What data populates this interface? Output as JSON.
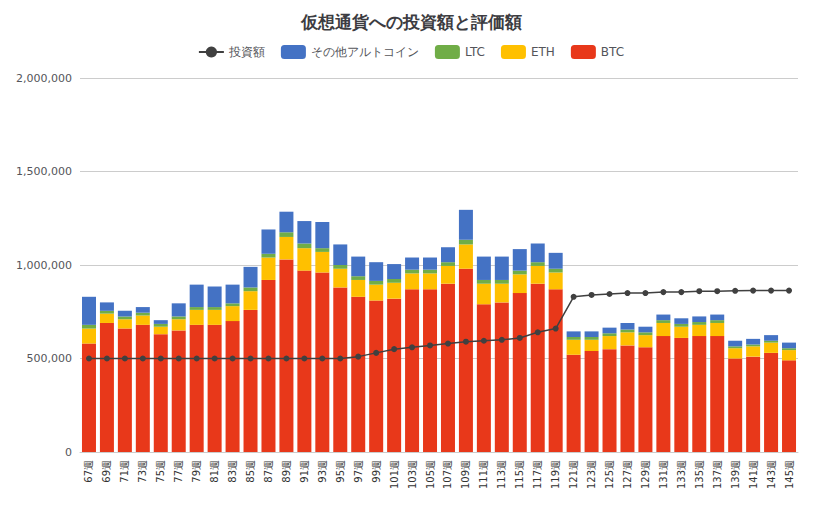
{
  "chart_data": {
    "type": "bar",
    "title": "仮想通貨への投資額と評価額",
    "categories": [
      "67週",
      "69週",
      "71週",
      "73週",
      "75週",
      "77週",
      "79週",
      "81週",
      "83週",
      "85週",
      "87週",
      "89週",
      "91週",
      "93週",
      "95週",
      "97週",
      "99週",
      "101週",
      "103週",
      "105週",
      "107週",
      "109週",
      "111週",
      "113週",
      "115週",
      "117週",
      "119週",
      "121週",
      "123週",
      "125週",
      "127週",
      "129週",
      "131週",
      "133週",
      "135週",
      "137週",
      "139週",
      "141週",
      "143週",
      "145週"
    ],
    "series": [
      {
        "name": "BTC",
        "type": "bar",
        "color": "#E8381A",
        "values": [
          580000,
          690000,
          660000,
          680000,
          630000,
          650000,
          680000,
          680000,
          700000,
          760000,
          920000,
          1030000,
          970000,
          960000,
          880000,
          830000,
          810000,
          820000,
          870000,
          870000,
          900000,
          980000,
          790000,
          800000,
          850000,
          900000,
          870000,
          520000,
          540000,
          550000,
          570000,
          560000,
          620000,
          610000,
          620000,
          620000,
          500000,
          510000,
          530000,
          490000
        ]
      },
      {
        "name": "ETH",
        "type": "bar",
        "color": "#FFC000",
        "values": [
          80000,
          50000,
          50000,
          50000,
          40000,
          60000,
          80000,
          80000,
          80000,
          100000,
          120000,
          120000,
          120000,
          110000,
          100000,
          90000,
          85000,
          85000,
          85000,
          85000,
          95000,
          130000,
          110000,
          100000,
          100000,
          95000,
          90000,
          80000,
          60000,
          70000,
          70000,
          65000,
          70000,
          60000,
          60000,
          70000,
          55000,
          55000,
          55000,
          55000
        ]
      },
      {
        "name": "LTC",
        "type": "bar",
        "color": "#70AD47",
        "values": [
          20000,
          15000,
          15000,
          15000,
          15000,
          15000,
          15000,
          15000,
          15000,
          20000,
          20000,
          25000,
          25000,
          20000,
          20000,
          20000,
          20000,
          20000,
          20000,
          20000,
          20000,
          25000,
          20000,
          20000,
          20000,
          20000,
          20000,
          15000,
          15000,
          15000,
          15000,
          15000,
          15000,
          15000,
          15000,
          15000,
          10000,
          10000,
          10000,
          10000
        ]
      },
      {
        "name": "その他アルトコイン",
        "type": "bar",
        "color": "#4472C4",
        "values": [
          150000,
          45000,
          30000,
          30000,
          20000,
          70000,
          120000,
          110000,
          100000,
          110000,
          130000,
          110000,
          120000,
          140000,
          110000,
          105000,
          100000,
          80000,
          65000,
          65000,
          80000,
          160000,
          125000,
          125000,
          115000,
          100000,
          85000,
          30000,
          30000,
          30000,
          35000,
          30000,
          30000,
          30000,
          30000,
          30000,
          30000,
          30000,
          30000,
          30000
        ]
      },
      {
        "name": "投資額",
        "type": "line",
        "color": "#404040",
        "marker": "o",
        "values": [
          500000,
          500000,
          500000,
          500000,
          500000,
          500000,
          500000,
          500000,
          500000,
          500000,
          500000,
          500000,
          500000,
          500000,
          500000,
          510000,
          530000,
          550000,
          560000,
          570000,
          580000,
          590000,
          595000,
          600000,
          610000,
          640000,
          660000,
          830000,
          840000,
          845000,
          850000,
          850000,
          855000,
          855000,
          860000,
          860000,
          862000,
          863000,
          863000,
          863000
        ]
      }
    ],
    "stacked": true,
    "ylim": [
      0,
      2000000
    ],
    "yticks": [
      0,
      {
        "value": 500000,
        "label": "500,000"
      },
      {
        "value": 1000000,
        "label": "1,000,000"
      },
      {
        "value": 1500000,
        "label": "1,500,000"
      },
      {
        "value": 2000000,
        "label": "2,000,000"
      }
    ],
    "grid": true,
    "legend": "top"
  }
}
